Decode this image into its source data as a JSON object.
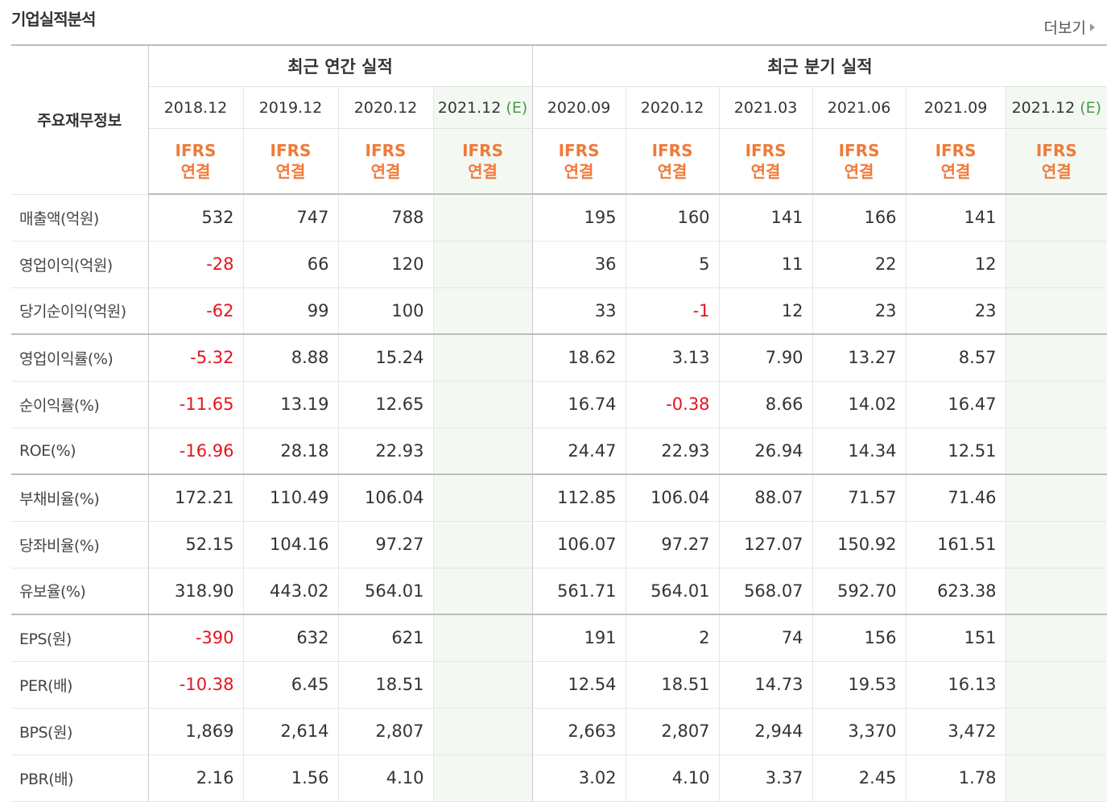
{
  "section_title": "기업실적분석",
  "more_label": "더보기",
  "corner_label": "주요재무정보",
  "annual_group_label": "최근 연간 실적",
  "quarter_group_label": "최근 분기 실적",
  "annual_periods": [
    {
      "date": "2018.12",
      "est": "",
      "std1": "IFRS",
      "std2": "연결"
    },
    {
      "date": "2019.12",
      "est": "",
      "std1": "IFRS",
      "std2": "연결"
    },
    {
      "date": "2020.12",
      "est": "",
      "std1": "IFRS",
      "std2": "연결"
    },
    {
      "date": "2021.12",
      "est": "(E)",
      "std1": "IFRS",
      "std2": "연결"
    }
  ],
  "quarter_periods": [
    {
      "date": "2020.09",
      "est": "",
      "std1": "IFRS",
      "std2": "연결"
    },
    {
      "date": "2020.12",
      "est": "",
      "std1": "IFRS",
      "std2": "연결"
    },
    {
      "date": "2021.03",
      "est": "",
      "std1": "IFRS",
      "std2": "연결"
    },
    {
      "date": "2021.06",
      "est": "",
      "std1": "IFRS",
      "std2": "연결"
    },
    {
      "date": "2021.09",
      "est": "",
      "std1": "IFRS",
      "std2": "연결"
    },
    {
      "date": "2021.12",
      "est": "(E)",
      "std1": "IFRS",
      "std2": "연결"
    }
  ],
  "rows": [
    {
      "label": "매출액(억원)",
      "annual": [
        "532",
        "747",
        "788",
        ""
      ],
      "quarter": [
        "195",
        "160",
        "141",
        "166",
        "141",
        ""
      ]
    },
    {
      "label": "영업이익(억원)",
      "annual": [
        "-28",
        "66",
        "120",
        ""
      ],
      "quarter": [
        "36",
        "5",
        "11",
        "22",
        "12",
        ""
      ]
    },
    {
      "label": "당기순이익(억원)",
      "annual": [
        "-62",
        "99",
        "100",
        ""
      ],
      "quarter": [
        "33",
        "-1",
        "12",
        "23",
        "23",
        ""
      ]
    },
    {
      "label": "영업이익률(%)",
      "annual": [
        "-5.32",
        "8.88",
        "15.24",
        ""
      ],
      "quarter": [
        "18.62",
        "3.13",
        "7.90",
        "13.27",
        "8.57",
        ""
      ]
    },
    {
      "label": "순이익률(%)",
      "annual": [
        "-11.65",
        "13.19",
        "12.65",
        ""
      ],
      "quarter": [
        "16.74",
        "-0.38",
        "8.66",
        "14.02",
        "16.47",
        ""
      ]
    },
    {
      "label": "ROE(%)",
      "annual": [
        "-16.96",
        "28.18",
        "22.93",
        ""
      ],
      "quarter": [
        "24.47",
        "22.93",
        "26.94",
        "14.34",
        "12.51",
        ""
      ]
    },
    {
      "label": "부채비율(%)",
      "annual": [
        "172.21",
        "110.49",
        "106.04",
        ""
      ],
      "quarter": [
        "112.85",
        "106.04",
        "88.07",
        "71.57",
        "71.46",
        ""
      ]
    },
    {
      "label": "당좌비율(%)",
      "annual": [
        "52.15",
        "104.16",
        "97.27",
        ""
      ],
      "quarter": [
        "106.07",
        "97.27",
        "127.07",
        "150.92",
        "161.51",
        ""
      ]
    },
    {
      "label": "유보율(%)",
      "annual": [
        "318.90",
        "443.02",
        "564.01",
        ""
      ],
      "quarter": [
        "561.71",
        "564.01",
        "568.07",
        "592.70",
        "623.38",
        ""
      ]
    },
    {
      "label": "EPS(원)",
      "annual": [
        "-390",
        "632",
        "621",
        ""
      ],
      "quarter": [
        "191",
        "2",
        "74",
        "156",
        "151",
        ""
      ]
    },
    {
      "label": "PER(배)",
      "annual": [
        "-10.38",
        "6.45",
        "18.51",
        ""
      ],
      "quarter": [
        "12.54",
        "18.51",
        "14.73",
        "19.53",
        "16.13",
        ""
      ]
    },
    {
      "label": "BPS(원)",
      "annual": [
        "1,869",
        "2,614",
        "2,807",
        ""
      ],
      "quarter": [
        "2,663",
        "2,807",
        "2,944",
        "3,370",
        "3,472",
        ""
      ]
    },
    {
      "label": "PBR(배)",
      "annual": [
        "2.16",
        "1.56",
        "4.10",
        ""
      ],
      "quarter": [
        "3.02",
        "4.10",
        "3.37",
        "2.45",
        "1.78",
        ""
      ]
    }
  ],
  "colors": {
    "negative": "#e5141e",
    "ifrs": "#f07a38",
    "estimate_bg": "#f3f8f3",
    "estimate_mark": "#4a9a4a"
  }
}
